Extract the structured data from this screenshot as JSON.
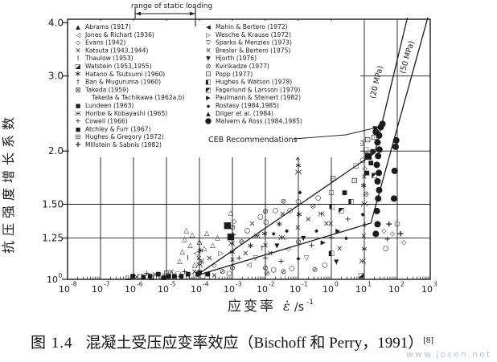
{
  "figure": {
    "caption_prefix": "图 1.4",
    "caption_text": "混凝土受压应变率效应（Bischoff 和 Perry，1991）",
    "caption_ref": "[8]",
    "watermark": "www.josen.net"
  },
  "chart_data": {
    "type": "scatter",
    "x_scale": "log",
    "y_scale": "log",
    "xlim_exp": [
      -8,
      3
    ],
    "ylim": [
      1.0,
      4.2
    ],
    "xlabel_cn": "应变率",
    "xlabel_sym_main": "ε̇",
    "xlabel_sym_rest": "/s",
    "xlabel_sym_sup": "-1",
    "ylabel": "抗压强度增长系数",
    "x_ticks_exp": [
      -8,
      -7,
      -6,
      -5,
      -4,
      -3,
      -2,
      -1,
      0,
      1,
      2,
      3
    ],
    "y_ticks": [
      {
        "value": 4.0,
        "label": "4.0"
      },
      {
        "value": 3.0,
        "label": "3.0"
      },
      {
        "value": 2.0,
        "label": "2.0"
      },
      {
        "value": 1.5,
        "label": "1.50"
      },
      {
        "value": 1.25,
        "label": "1.25"
      },
      {
        "value": 1.0,
        "label": "10",
        "sup": "0"
      }
    ],
    "gridlines_y": [
      3.0,
      2.0,
      1.5,
      1.25
    ],
    "annotations": {
      "static_range": {
        "label": "range of static loading",
        "x_from_exp": -5.95,
        "x_to_exp": -4.12
      },
      "ceb_label": "CEB Recommendations",
      "curve_label_20": "(20 MPa)",
      "curve_label_50": "(50 MPa)"
    },
    "curves": [
      {
        "name": "CEB 20 MPa",
        "points": [
          [
            -4.1,
            1.02
          ],
          [
            1.32,
            1.98
          ],
          [
            2.33,
            4.18
          ]
        ]
      },
      {
        "name": "CEB 50 MPa",
        "points": [
          [
            -4.1,
            1.02
          ],
          [
            1.2,
            1.355
          ],
          [
            2.95,
            4.18
          ]
        ]
      }
    ],
    "marker_glyphs": {
      "tf": [
        "▲",
        8
      ],
      "t": [
        "△",
        8.5
      ],
      "tdf": [
        "▼",
        8
      ],
      "td": [
        "▽",
        8.5
      ],
      "tlf": [
        "◀",
        8
      ],
      "tl": [
        "◁",
        8.5
      ],
      "trf": [
        "▶",
        8
      ],
      "tr": [
        "▷",
        8.5
      ],
      "s": [
        "■",
        7.5
      ],
      "s2": [
        "■",
        11
      ],
      "so": [
        "□",
        8
      ],
      "sh": [
        "◧",
        8.5
      ],
      "sc": [
        "◩",
        8.5
      ],
      "scr": [
        "◪",
        8.5
      ],
      "sm": [
        "⊟",
        9
      ],
      "sx": [
        "⊠",
        9
      ],
      "sd": [
        "⊡",
        9.5
      ],
      "c": [
        "●",
        10.5
      ],
      "o": [
        "○",
        8.5
      ],
      "os": [
        "⊘",
        9
      ],
      "op": [
        "⊕",
        9
      ],
      "x": [
        "×",
        9.5
      ],
      "p": [
        "+",
        10
      ],
      "pb": [
        "+",
        11
      ],
      "zh": [
        "Ж",
        8
      ],
      "st": [
        "∗",
        11
      ],
      "dg": [
        "†",
        8.5
      ],
      "d": [
        "◇",
        8
      ],
      "fs": [
        "◆",
        6.5
      ],
      "ib": [
        "Ι",
        8.5
      ]
    },
    "legend_left": [
      {
        "marker": "tf",
        "label": "Abrams (1917)"
      },
      {
        "marker": "tl",
        "label": "Jones & Richart (1936)"
      },
      {
        "marker": "d",
        "label": "Evans (1942)"
      },
      {
        "marker": "x",
        "label": "Katsuta (1943,1944)"
      },
      {
        "marker": "ib",
        "label": "Thaulow (1953)"
      },
      {
        "marker": "scr",
        "label": "Watstein (1953,1955)"
      },
      {
        "marker": "st",
        "label": "Hatano & Tsutsumi (1960)"
      },
      {
        "marker": "dg",
        "label": "Ban & Muguruma (1960)"
      },
      {
        "marker": "sx",
        "label": "Takeda (1959)"
      },
      {
        "marker": null,
        "label": "Takeda & Tachikawa (1962a,b)"
      },
      {
        "marker": "s",
        "label": "Lundeen (1963)"
      },
      {
        "marker": "zh",
        "label": "Horibe & Kobayashi (1965)"
      },
      {
        "marker": "p",
        "label": "Cowell (1966)"
      },
      {
        "marker": "s",
        "label": "Atchley & Furr (1967)"
      },
      {
        "marker": "sm",
        "label": "Hughes & Gregory (1972)"
      },
      {
        "marker": "pb",
        "label": "Millstein & Sabnis (1982)"
      }
    ],
    "legend_right": [
      {
        "marker": "tlf",
        "label": "Mahin & Bertero (1972)"
      },
      {
        "marker": "tr",
        "label": "Wesche & Krause (1972)"
      },
      {
        "marker": "td",
        "label": "Sparks & Menzies (1973)"
      },
      {
        "marker": "x",
        "label": "Bresler & Bertero (1975)"
      },
      {
        "marker": "tdf",
        "label": "Hjorth (1976)"
      },
      {
        "marker": "os",
        "label": "Kvirikadze (1977)"
      },
      {
        "marker": "sd",
        "label": "Popp (1977)"
      },
      {
        "marker": "sh",
        "label": "Hughes & Watson (1978)"
      },
      {
        "marker": "sc",
        "label": "Fagerlund & Larsson (1979)"
      },
      {
        "marker": "trf",
        "label": "Paulmann & Steinert (1982)"
      },
      {
        "marker": "fs",
        "label": "Rostasy (1984,1985)"
      },
      {
        "marker": "tf",
        "label": "Dilger et al. (1984)"
      },
      {
        "marker": "c",
        "label": "Malvern & Ross (1984,1985)"
      }
    ],
    "points": [
      [
        -6.15,
        1.01,
        "so"
      ],
      [
        -6.02,
        1.02,
        "s"
      ],
      [
        -5.9,
        1.01,
        "x"
      ],
      [
        -5.8,
        1.02,
        "so"
      ],
      [
        -5.7,
        1.015,
        "s"
      ],
      [
        -5.6,
        1.03,
        "p"
      ],
      [
        -5.5,
        1.02,
        "s"
      ],
      [
        -5.45,
        1.01,
        "so"
      ],
      [
        -5.35,
        1.025,
        "x"
      ],
      [
        -5.25,
        1.03,
        "s"
      ],
      [
        -5.15,
        1.02,
        "so"
      ],
      [
        -5.08,
        1.01,
        "s"
      ],
      [
        -5.0,
        1.03,
        "sm"
      ],
      [
        -4.93,
        1.02,
        "s"
      ],
      [
        -4.85,
        1.04,
        "x"
      ],
      [
        -4.76,
        1.02,
        "s"
      ],
      [
        -4.65,
        1.03,
        "so"
      ],
      [
        -4.55,
        1.02,
        "s"
      ],
      [
        -4.45,
        1.04,
        "p"
      ],
      [
        -4.35,
        1.03,
        "s"
      ],
      [
        -4.25,
        1.02,
        "so"
      ],
      [
        -4.15,
        1.04,
        "x"
      ],
      [
        -4.05,
        1.03,
        "s"
      ],
      [
        -3.9,
        1.02,
        "so"
      ],
      [
        -3.75,
        1.03,
        "s"
      ],
      [
        -3.55,
        1.02,
        "x"
      ],
      [
        -3.3,
        1.04,
        "os"
      ],
      [
        -3.1,
        1.03,
        "o"
      ],
      [
        -4.6,
        1.1,
        "t"
      ],
      [
        -4.52,
        1.16,
        "t"
      ],
      [
        -4.45,
        1.24,
        "t"
      ],
      [
        -4.4,
        1.3,
        "t"
      ],
      [
        -4.35,
        1.12,
        "ib"
      ],
      [
        -4.28,
        1.2,
        "t"
      ],
      [
        -4.22,
        1.27,
        "t"
      ],
      [
        -4.15,
        1.08,
        "t"
      ],
      [
        -4.1,
        1.15,
        "tl"
      ],
      [
        -4.0,
        1.22,
        "t"
      ],
      [
        -3.95,
        1.1,
        "zh"
      ],
      [
        -3.85,
        1.18,
        "t"
      ],
      [
        -3.78,
        1.28,
        "t"
      ],
      [
        -3.7,
        1.12,
        "x"
      ],
      [
        -3.6,
        1.2,
        "t"
      ],
      [
        -3.55,
        1.08,
        "d"
      ],
      [
        -3.45,
        1.25,
        "t"
      ],
      [
        -3.35,
        1.15,
        "tr"
      ],
      [
        -4.0,
        1.04,
        "s"
      ],
      [
        -4.0,
        1.08,
        "zh"
      ],
      [
        -4.02,
        1.12,
        "x"
      ],
      [
        -3.98,
        1.17,
        "st"
      ],
      [
        -4.0,
        1.22,
        "t"
      ],
      [
        -3.15,
        1.34,
        "s2"
      ],
      [
        -3.05,
        1.26,
        "s2"
      ],
      [
        -3.0,
        1.06,
        "os"
      ],
      [
        -3.0,
        1.11,
        "x"
      ],
      [
        -3.0,
        1.16,
        "st"
      ],
      [
        -3.02,
        1.21,
        "zh"
      ],
      [
        -2.98,
        1.27,
        "p"
      ],
      [
        -3.0,
        1.32,
        "os"
      ],
      [
        -2.95,
        1.37,
        "d"
      ],
      [
        -3.05,
        1.43,
        "t"
      ],
      [
        -2.8,
        1.12,
        "p"
      ],
      [
        -2.72,
        1.22,
        "os"
      ],
      [
        -2.6,
        1.15,
        "x"
      ],
      [
        -2.55,
        1.3,
        "o"
      ],
      [
        -2.5,
        1.08,
        "tl"
      ],
      [
        -2.45,
        1.2,
        "st"
      ],
      [
        -2.4,
        1.35,
        "x"
      ],
      [
        -2.3,
        1.12,
        "td"
      ],
      [
        -2.25,
        1.26,
        "zh"
      ],
      [
        -2.15,
        1.4,
        "o"
      ],
      [
        -2.1,
        1.18,
        "dg"
      ],
      [
        -1.95,
        1.03,
        "os"
      ],
      [
        -1.75,
        1.05,
        "o"
      ],
      [
        -1.45,
        1.04,
        "os"
      ],
      [
        -1.2,
        1.06,
        "o"
      ],
      [
        -2.0,
        1.06,
        "os"
      ],
      [
        -2.0,
        1.12,
        "p"
      ],
      [
        -2.0,
        1.2,
        "x"
      ],
      [
        -2.02,
        1.28,
        "st"
      ],
      [
        -1.98,
        1.36,
        "o"
      ],
      [
        -2.0,
        1.44,
        "os"
      ],
      [
        -1.85,
        1.15,
        "x"
      ],
      [
        -1.75,
        1.28,
        "fs"
      ],
      [
        -1.7,
        1.45,
        "o"
      ],
      [
        -1.65,
        1.2,
        "tdf"
      ],
      [
        -1.58,
        1.35,
        "st"
      ],
      [
        -1.52,
        1.1,
        "p"
      ],
      [
        -1.5,
        1.25,
        "zh"
      ],
      [
        -1.48,
        1.42,
        "x"
      ],
      [
        -1.45,
        1.52,
        "os"
      ],
      [
        -1.35,
        1.3,
        "fs"
      ],
      [
        -1.3,
        1.18,
        "d"
      ],
      [
        -1.25,
        1.45,
        "o"
      ],
      [
        -1.0,
        1.12,
        "fs"
      ],
      [
        -1.0,
        1.22,
        "os"
      ],
      [
        -1.02,
        1.32,
        "x"
      ],
      [
        -0.98,
        1.42,
        "st"
      ],
      [
        -1.0,
        1.52,
        "o"
      ],
      [
        -0.95,
        1.6,
        "fs"
      ],
      [
        -1.0,
        1.78,
        "zh"
      ],
      [
        -1.0,
        1.85,
        "st"
      ],
      [
        -1.02,
        1.92,
        "x"
      ],
      [
        -0.85,
        1.25,
        "tdf"
      ],
      [
        -0.75,
        1.12,
        "td"
      ],
      [
        -0.7,
        1.38,
        "x"
      ],
      [
        -0.6,
        1.2,
        "p"
      ],
      [
        -0.55,
        1.48,
        "os"
      ],
      [
        -0.5,
        1.05,
        "os"
      ],
      [
        -0.45,
        1.3,
        "fs"
      ],
      [
        -0.4,
        1.55,
        "o"
      ],
      [
        -0.3,
        1.42,
        "zh"
      ],
      [
        -0.25,
        1.22,
        "trf"
      ],
      [
        -0.2,
        1.08,
        "o"
      ],
      [
        -0.15,
        1.35,
        "x"
      ],
      [
        0.0,
        1.15,
        "sh"
      ],
      [
        0.0,
        1.25,
        "p"
      ],
      [
        -0.02,
        1.35,
        "x"
      ],
      [
        0.02,
        1.48,
        "sh"
      ],
      [
        0.0,
        1.6,
        "so"
      ],
      [
        0.05,
        1.72,
        "sd"
      ],
      [
        0.15,
        1.1,
        "tdf"
      ],
      [
        0.2,
        1.3,
        "trf"
      ],
      [
        0.25,
        1.18,
        "x"
      ],
      [
        0.3,
        1.45,
        "sc"
      ],
      [
        0.4,
        1.6,
        "s"
      ],
      [
        0.45,
        1.25,
        "fs"
      ],
      [
        0.5,
        1.38,
        "p"
      ],
      [
        0.6,
        1.52,
        "sh"
      ],
      [
        0.7,
        1.7,
        "sd"
      ],
      [
        0.75,
        1.85,
        "so"
      ],
      [
        0.95,
        1.1,
        "zh"
      ],
      [
        1.0,
        1.18,
        "st"
      ],
      [
        0.98,
        1.26,
        "x"
      ],
      [
        1.02,
        1.34,
        "p"
      ],
      [
        0.95,
        1.42,
        "fs"
      ],
      [
        1.0,
        1.5,
        "zh"
      ],
      [
        1.05,
        1.58,
        "os"
      ],
      [
        0.98,
        1.66,
        "st"
      ],
      [
        1.0,
        1.74,
        "x"
      ],
      [
        1.02,
        1.82,
        "d"
      ],
      [
        0.95,
        1.9,
        "o"
      ],
      [
        0.9,
        1.02,
        "scr"
      ],
      [
        0.9,
        2.08,
        "sd"
      ],
      [
        1.1,
        2.12,
        "sd"
      ],
      [
        1.3,
        2.15,
        "sd"
      ],
      [
        1.05,
        2.02,
        "so"
      ],
      [
        1.12,
        1.95,
        "s2"
      ],
      [
        1.2,
        1.88,
        "s"
      ],
      [
        1.25,
        2.0,
        "s"
      ],
      [
        1.08,
        1.78,
        "s"
      ],
      [
        1.3,
        1.75,
        "sc"
      ],
      [
        1.35,
        1.28,
        "c"
      ],
      [
        1.4,
        1.35,
        "c"
      ],
      [
        1.38,
        1.45,
        "c"
      ],
      [
        1.42,
        1.55,
        "c"
      ],
      [
        1.45,
        1.62,
        "c"
      ],
      [
        1.4,
        1.7,
        "c"
      ],
      [
        1.44,
        1.78,
        "c"
      ],
      [
        1.38,
        1.86,
        "c"
      ],
      [
        1.42,
        1.95,
        "c"
      ],
      [
        1.46,
        2.02,
        "c"
      ],
      [
        1.4,
        2.1,
        "c"
      ],
      [
        1.45,
        2.18,
        "c"
      ],
      [
        1.5,
        2.28,
        "c"
      ],
      [
        1.55,
        2.32,
        "c"
      ],
      [
        1.35,
        2.22,
        "c"
      ],
      [
        1.9,
        1.55,
        "c"
      ],
      [
        1.92,
        1.8,
        "c"
      ],
      [
        1.95,
        2.05,
        "c"
      ],
      [
        1.97,
        2.12,
        "c"
      ],
      [
        1.6,
        1.3,
        "d"
      ],
      [
        1.65,
        1.18,
        "o"
      ],
      [
        1.7,
        1.24,
        "p"
      ],
      [
        1.75,
        1.35,
        "pb"
      ],
      [
        1.85,
        1.28,
        "d"
      ],
      [
        2.0,
        1.35,
        "o"
      ],
      [
        2.1,
        1.28,
        "pb"
      ],
      [
        2.2,
        1.22,
        "d"
      ]
    ]
  }
}
